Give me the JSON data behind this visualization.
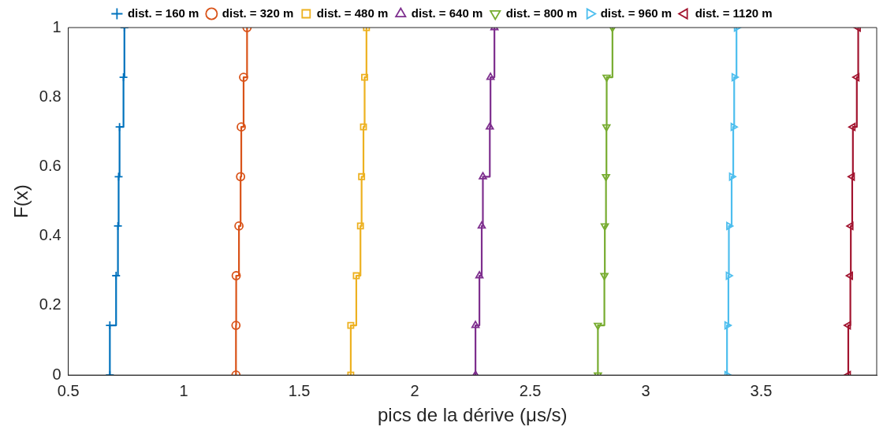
{
  "chart_data": {
    "type": "step",
    "xlabel": "pics de la dérive (μs/s)",
    "ylabel": "F(x)",
    "xlim": [
      0.5,
      4
    ],
    "xticks": [
      0.5,
      1,
      1.5,
      2,
      2.5,
      3,
      3.5
    ],
    "ylim": [
      0,
      1
    ],
    "yticks": [
      0,
      0.2,
      0.4,
      0.6,
      0.8,
      1
    ],
    "grid": false,
    "legend": "top",
    "series": [
      {
        "name": "dist. = 160 m",
        "color": "#0072bd",
        "marker": "cross",
        "x": [
          0.68,
          0.68,
          0.707,
          0.715,
          0.718,
          0.722,
          0.739,
          0.743
        ],
        "values": [
          0,
          0.143,
          0.286,
          0.429,
          0.571,
          0.714,
          0.857,
          1
        ]
      },
      {
        "name": "dist. = 320 m",
        "color": "#d95319",
        "marker": "circle",
        "x": [
          1.226,
          1.226,
          1.227,
          1.239,
          1.246,
          1.249,
          1.259,
          1.274
        ],
        "values": [
          0,
          0.143,
          0.286,
          0.429,
          0.571,
          0.714,
          0.857,
          1
        ]
      },
      {
        "name": "dist. = 480 m",
        "color": "#edb120",
        "marker": "square",
        "x": [
          1.723,
          1.723,
          1.747,
          1.765,
          1.77,
          1.778,
          1.783,
          1.791
        ],
        "values": [
          0,
          0.143,
          0.286,
          0.429,
          0.571,
          0.714,
          0.857,
          1
        ]
      },
      {
        "name": "dist. = 640 m",
        "color": "#7e2f8e",
        "marker": "triangle",
        "x": [
          2.263,
          2.263,
          2.28,
          2.29,
          2.295,
          2.325,
          2.328,
          2.345
        ],
        "values": [
          0,
          0.143,
          0.286,
          0.429,
          0.571,
          0.714,
          0.857,
          1
        ]
      },
      {
        "name": "dist. = 800 m",
        "color": "#77ac30",
        "marker": "triangle-down",
        "x": [
          2.793,
          2.793,
          2.821,
          2.823,
          2.828,
          2.83,
          2.831,
          2.856
        ],
        "values": [
          0,
          0.143,
          0.286,
          0.429,
          0.571,
          0.714,
          0.857,
          1
        ]
      },
      {
        "name": "dist. = 960 m",
        "color": "#4dbeee",
        "marker": "triangle-right",
        "x": [
          3.352,
          3.352,
          3.358,
          3.36,
          3.372,
          3.379,
          3.383,
          3.393
        ],
        "values": [
          0,
          0.143,
          0.286,
          0.429,
          0.571,
          0.714,
          0.857,
          1
        ]
      },
      {
        "name": "dist. = 1120 m",
        "color": "#a2142f",
        "marker": "triangle-left",
        "x": [
          3.877,
          3.877,
          3.886,
          3.888,
          3.894,
          3.897,
          3.914,
          3.92
        ],
        "values": [
          0,
          0.143,
          0.286,
          0.429,
          0.571,
          0.714,
          0.857,
          1
        ]
      }
    ]
  }
}
